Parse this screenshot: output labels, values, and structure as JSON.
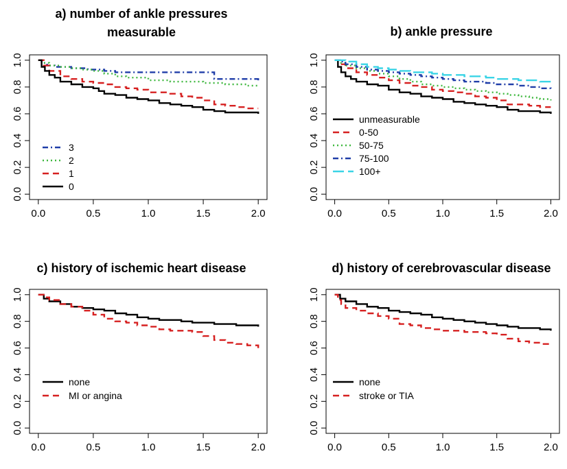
{
  "chart_data": [
    {
      "type": "line",
      "title_lines": [
        "a) number of ankle pressures",
        "measurable"
      ],
      "xlim": [
        0,
        2
      ],
      "ylim": [
        0,
        1
      ],
      "xticks": [
        "0.0",
        "0.5",
        "1.0",
        "1.5",
        "2.0"
      ],
      "yticks": [
        "0.0",
        "0.2",
        "0.4",
        "0.6",
        "0.8",
        "1.0"
      ],
      "legend_position": "bottom-left",
      "series": [
        {
          "name": "3",
          "color": "#1f3da8",
          "dash": "dashdot",
          "x": [
            0,
            0.03,
            0.08,
            0.15,
            0.3,
            0.45,
            0.6,
            0.7,
            0.85,
            1.0,
            1.2,
            1.4,
            1.55,
            1.6,
            1.8,
            2.0
          ],
          "y": [
            1.0,
            0.98,
            0.96,
            0.95,
            0.94,
            0.93,
            0.92,
            0.91,
            0.91,
            0.91,
            0.91,
            0.91,
            0.91,
            0.86,
            0.86,
            0.85
          ]
        },
        {
          "name": "2",
          "color": "#3fb83f",
          "dash": "dotted",
          "x": [
            0,
            0.05,
            0.1,
            0.2,
            0.3,
            0.4,
            0.5,
            0.6,
            0.7,
            0.8,
            1.0,
            1.2,
            1.4,
            1.5,
            1.7,
            1.9,
            2.0
          ],
          "y": [
            1.0,
            0.98,
            0.96,
            0.95,
            0.94,
            0.93,
            0.92,
            0.9,
            0.88,
            0.87,
            0.85,
            0.84,
            0.84,
            0.83,
            0.82,
            0.81,
            0.8
          ]
        },
        {
          "name": "1",
          "color": "#d62020",
          "dash": "dashed",
          "x": [
            0,
            0.05,
            0.1,
            0.2,
            0.3,
            0.4,
            0.5,
            0.6,
            0.7,
            0.8,
            0.9,
            1.0,
            1.1,
            1.2,
            1.3,
            1.4,
            1.5,
            1.6,
            1.7,
            1.8,
            1.9,
            2.0
          ],
          "y": [
            1.0,
            0.96,
            0.92,
            0.88,
            0.86,
            0.84,
            0.83,
            0.82,
            0.8,
            0.79,
            0.78,
            0.76,
            0.76,
            0.75,
            0.73,
            0.72,
            0.7,
            0.67,
            0.66,
            0.65,
            0.64,
            0.64
          ]
        },
        {
          "name": "0",
          "color": "#000000",
          "dash": "solid",
          "x": [
            0,
            0.03,
            0.06,
            0.1,
            0.15,
            0.2,
            0.3,
            0.4,
            0.5,
            0.55,
            0.6,
            0.7,
            0.8,
            0.9,
            1.0,
            1.1,
            1.2,
            1.3,
            1.4,
            1.5,
            1.6,
            1.7,
            1.8,
            1.9,
            2.0
          ],
          "y": [
            1.0,
            0.95,
            0.92,
            0.89,
            0.87,
            0.84,
            0.82,
            0.8,
            0.79,
            0.77,
            0.75,
            0.74,
            0.72,
            0.71,
            0.7,
            0.68,
            0.67,
            0.66,
            0.65,
            0.63,
            0.62,
            0.61,
            0.61,
            0.61,
            0.6
          ]
        }
      ]
    },
    {
      "type": "line",
      "title_lines": [
        "b) ankle pressure"
      ],
      "xlim": [
        0,
        2
      ],
      "ylim": [
        0,
        1
      ],
      "xticks": [
        "0.0",
        "0.5",
        "1.0",
        "1.5",
        "2.0"
      ],
      "yticks": [
        "0.0",
        "0.2",
        "0.4",
        "0.6",
        "0.8",
        "1.0"
      ],
      "legend_position": "middle-left",
      "series": [
        {
          "name": "unmeasurable",
          "color": "#000000",
          "dash": "solid",
          "x": [
            0,
            0.03,
            0.06,
            0.1,
            0.15,
            0.2,
            0.3,
            0.4,
            0.5,
            0.6,
            0.7,
            0.8,
            0.9,
            1.0,
            1.1,
            1.2,
            1.3,
            1.4,
            1.5,
            1.6,
            1.7,
            1.8,
            1.9,
            2.0
          ],
          "y": [
            1.0,
            0.95,
            0.91,
            0.88,
            0.86,
            0.84,
            0.82,
            0.81,
            0.78,
            0.76,
            0.75,
            0.73,
            0.72,
            0.71,
            0.69,
            0.68,
            0.67,
            0.66,
            0.65,
            0.63,
            0.62,
            0.62,
            0.61,
            0.6
          ]
        },
        {
          "name": "0-50",
          "color": "#d62020",
          "dash": "dashed",
          "x": [
            0,
            0.05,
            0.1,
            0.2,
            0.3,
            0.4,
            0.5,
            0.6,
            0.7,
            0.8,
            0.9,
            1.0,
            1.1,
            1.2,
            1.3,
            1.4,
            1.5,
            1.6,
            1.7,
            1.8,
            1.9,
            2.0
          ],
          "y": [
            1.0,
            0.97,
            0.94,
            0.91,
            0.89,
            0.87,
            0.85,
            0.83,
            0.81,
            0.8,
            0.78,
            0.77,
            0.76,
            0.75,
            0.73,
            0.72,
            0.7,
            0.67,
            0.67,
            0.66,
            0.65,
            0.65
          ]
        },
        {
          "name": "50-75",
          "color": "#3fb83f",
          "dash": "dotted",
          "x": [
            0,
            0.05,
            0.1,
            0.2,
            0.3,
            0.4,
            0.5,
            0.6,
            0.7,
            0.8,
            0.9,
            1.0,
            1.1,
            1.2,
            1.3,
            1.4,
            1.5,
            1.6,
            1.7,
            1.8,
            1.9,
            2.0
          ],
          "y": [
            1.0,
            0.98,
            0.96,
            0.94,
            0.92,
            0.9,
            0.88,
            0.86,
            0.84,
            0.82,
            0.81,
            0.8,
            0.79,
            0.78,
            0.77,
            0.76,
            0.75,
            0.74,
            0.73,
            0.72,
            0.71,
            0.7
          ]
        },
        {
          "name": "75-100",
          "color": "#1f3da8",
          "dash": "dashdot",
          "x": [
            0,
            0.05,
            0.1,
            0.2,
            0.3,
            0.4,
            0.5,
            0.6,
            0.7,
            0.8,
            0.9,
            1.0,
            1.1,
            1.2,
            1.3,
            1.4,
            1.5,
            1.6,
            1.7,
            1.8,
            1.9,
            2.0
          ],
          "y": [
            1.0,
            0.99,
            0.97,
            0.95,
            0.93,
            0.92,
            0.91,
            0.9,
            0.89,
            0.88,
            0.87,
            0.86,
            0.85,
            0.84,
            0.84,
            0.83,
            0.82,
            0.82,
            0.81,
            0.8,
            0.79,
            0.78
          ]
        },
        {
          "name": "100+",
          "color": "#3ad4e6",
          "dash": "longdash",
          "x": [
            0,
            0.05,
            0.1,
            0.2,
            0.3,
            0.4,
            0.5,
            0.6,
            0.7,
            0.8,
            0.9,
            1.0,
            1.1,
            1.2,
            1.3,
            1.4,
            1.5,
            1.6,
            1.7,
            1.8,
            1.9,
            2.0
          ],
          "y": [
            1.0,
            1.0,
            0.99,
            0.97,
            0.95,
            0.94,
            0.93,
            0.92,
            0.91,
            0.91,
            0.9,
            0.89,
            0.89,
            0.88,
            0.88,
            0.87,
            0.86,
            0.86,
            0.85,
            0.85,
            0.84,
            0.83
          ]
        }
      ]
    },
    {
      "type": "line",
      "title_lines": [
        "c) history of ischemic heart disease"
      ],
      "xlim": [
        0,
        2
      ],
      "ylim": [
        0,
        1
      ],
      "xticks": [
        "0.0",
        "0.5",
        "1.0",
        "1.5",
        "2.0"
      ],
      "yticks": [
        "0.0",
        "0.2",
        "0.4",
        "0.6",
        "0.8",
        "1.0"
      ],
      "legend_position": "lower-left",
      "series": [
        {
          "name": "none",
          "color": "#000000",
          "dash": "solid",
          "x": [
            0,
            0.05,
            0.1,
            0.2,
            0.3,
            0.4,
            0.5,
            0.6,
            0.7,
            0.8,
            0.9,
            1.0,
            1.1,
            1.2,
            1.3,
            1.4,
            1.5,
            1.6,
            1.7,
            1.8,
            1.9,
            2.0
          ],
          "y": [
            1.0,
            0.97,
            0.95,
            0.93,
            0.91,
            0.9,
            0.89,
            0.88,
            0.86,
            0.85,
            0.83,
            0.82,
            0.81,
            0.81,
            0.8,
            0.79,
            0.79,
            0.78,
            0.78,
            0.77,
            0.77,
            0.76
          ]
        },
        {
          "name": "MI or angina",
          "color": "#d62020",
          "dash": "dashed",
          "x": [
            0,
            0.05,
            0.1,
            0.2,
            0.3,
            0.4,
            0.5,
            0.6,
            0.7,
            0.8,
            0.9,
            1.0,
            1.1,
            1.2,
            1.3,
            1.4,
            1.5,
            1.6,
            1.7,
            1.8,
            1.9,
            2.0
          ],
          "y": [
            1.0,
            0.98,
            0.96,
            0.93,
            0.91,
            0.88,
            0.85,
            0.82,
            0.8,
            0.79,
            0.77,
            0.76,
            0.74,
            0.73,
            0.73,
            0.72,
            0.69,
            0.66,
            0.64,
            0.63,
            0.62,
            0.6
          ]
        }
      ]
    },
    {
      "type": "line",
      "title_lines": [
        "d) history of cerebrovascular disease"
      ],
      "xlim": [
        0,
        2
      ],
      "ylim": [
        0,
        1
      ],
      "xticks": [
        "0.0",
        "0.5",
        "1.0",
        "1.5",
        "2.0"
      ],
      "yticks": [
        "0.0",
        "0.2",
        "0.4",
        "0.6",
        "0.8",
        "1.0"
      ],
      "legend_position": "lower-left",
      "series": [
        {
          "name": "none",
          "color": "#000000",
          "dash": "solid",
          "x": [
            0,
            0.05,
            0.1,
            0.2,
            0.3,
            0.4,
            0.5,
            0.6,
            0.7,
            0.8,
            0.9,
            1.0,
            1.1,
            1.2,
            1.3,
            1.4,
            1.5,
            1.6,
            1.7,
            1.8,
            1.9,
            2.0
          ],
          "y": [
            1.0,
            0.97,
            0.95,
            0.93,
            0.91,
            0.9,
            0.88,
            0.87,
            0.86,
            0.85,
            0.83,
            0.82,
            0.81,
            0.8,
            0.79,
            0.78,
            0.77,
            0.76,
            0.75,
            0.75,
            0.74,
            0.73
          ]
        },
        {
          "name": "stroke or TIA",
          "color": "#d62020",
          "dash": "dashed",
          "x": [
            0,
            0.03,
            0.06,
            0.1,
            0.2,
            0.3,
            0.4,
            0.5,
            0.6,
            0.7,
            0.8,
            0.9,
            1.0,
            1.1,
            1.2,
            1.3,
            1.4,
            1.5,
            1.6,
            1.7,
            1.8,
            1.9,
            2.0
          ],
          "y": [
            1.0,
            0.96,
            0.93,
            0.9,
            0.88,
            0.86,
            0.84,
            0.82,
            0.78,
            0.77,
            0.75,
            0.74,
            0.73,
            0.73,
            0.72,
            0.72,
            0.71,
            0.7,
            0.67,
            0.65,
            0.64,
            0.63,
            0.63
          ]
        }
      ]
    }
  ]
}
